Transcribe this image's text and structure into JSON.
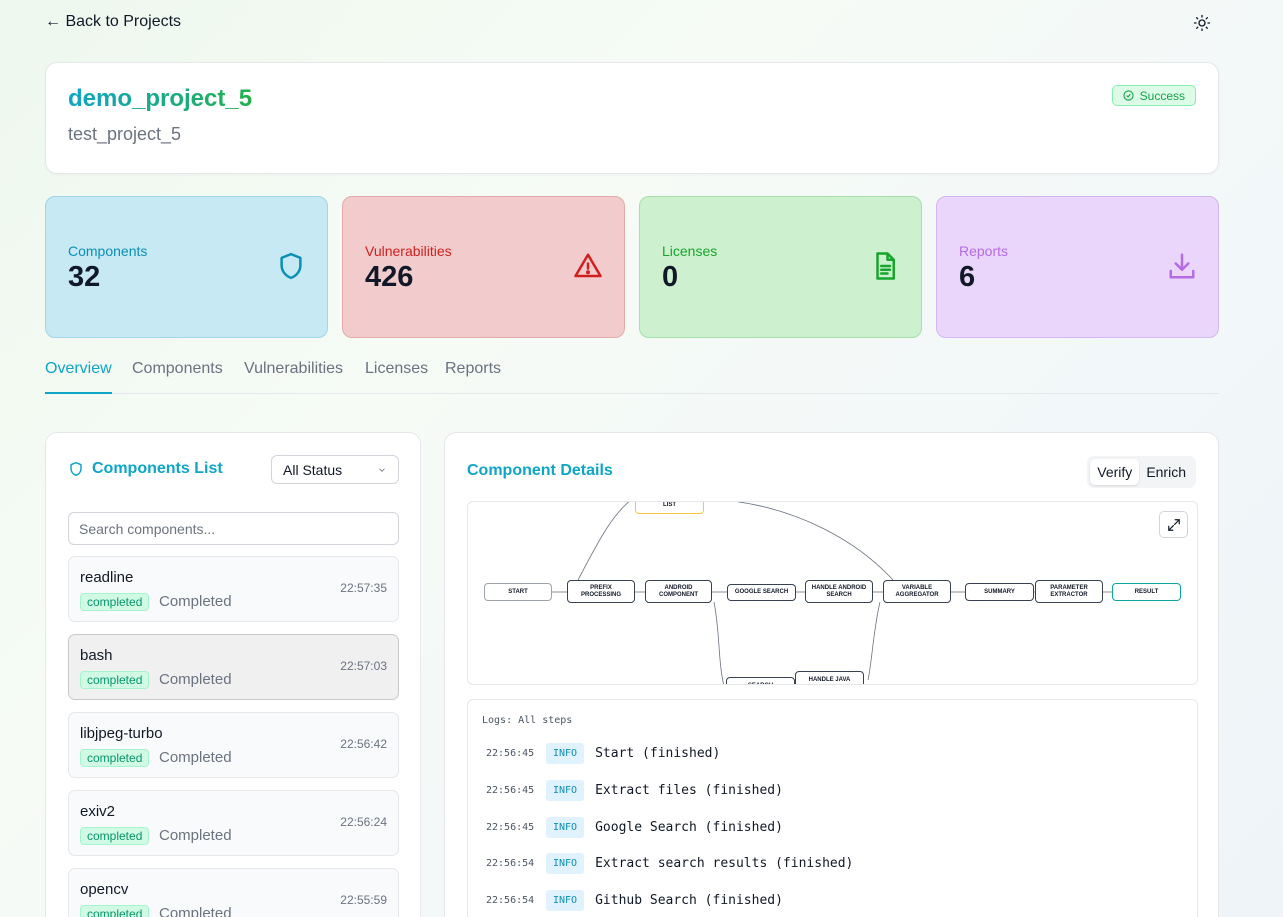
{
  "nav": {
    "back_label": "← Back to Projects",
    "theme_icon": "sun-icon"
  },
  "project": {
    "title": "demo_project_5",
    "subtitle": "test_project_5",
    "status": "Success"
  },
  "stats": [
    {
      "label": "Components",
      "value": "32",
      "icon": "shield-icon"
    },
    {
      "label": "Vulnerabilities",
      "value": "426",
      "icon": "warning-triangle-icon"
    },
    {
      "label": "Licenses",
      "value": "0",
      "icon": "document-icon"
    },
    {
      "label": "Reports",
      "value": "6",
      "icon": "download-icon"
    }
  ],
  "tabs": [
    "Overview",
    "Components",
    "Vulnerabilities",
    "Licenses",
    "Reports"
  ],
  "components_list": {
    "title": "Components List",
    "filter_value": "All Status",
    "search_placeholder": "Search components...",
    "items": [
      {
        "name": "readline",
        "badge": "completed",
        "state": "Completed",
        "time": "22:57:35"
      },
      {
        "name": "bash",
        "badge": "completed",
        "state": "Completed",
        "time": "22:57:03"
      },
      {
        "name": "libjpeg-turbo",
        "badge": "completed",
        "state": "Completed",
        "time": "22:56:42"
      },
      {
        "name": "exiv2",
        "badge": "completed",
        "state": "Completed",
        "time": "22:56:24"
      },
      {
        "name": "opencv",
        "badge": "completed",
        "state": "Completed",
        "time": "22:55:59"
      }
    ]
  },
  "details": {
    "title": "Component Details",
    "modes": [
      "Verify",
      "Enrich"
    ],
    "nodes": {
      "list": "LIST",
      "start": "START",
      "prefix": "PREFIX PROCESSING",
      "android": "ANDROID COMPONENT",
      "google": "GOOGLE SEARCH",
      "handle_android": "HANDLE ANDROID SEARCH",
      "aggregator": "VARIABLE AGGREGATOR",
      "summary": "SUMMARY",
      "extractor": "PARAMETER EXTRACTOR",
      "result": "RESULT",
      "search": "SEARCH",
      "handle_java": "HANDLE JAVA"
    },
    "logs_title": "Logs: All steps",
    "logs": [
      {
        "time": "22:56:45",
        "level": "INFO",
        "message": "Start (finished)"
      },
      {
        "time": "22:56:45",
        "level": "INFO",
        "message": "Extract files (finished)"
      },
      {
        "time": "22:56:45",
        "level": "INFO",
        "message": "Google Search (finished)"
      },
      {
        "time": "22:56:54",
        "level": "INFO",
        "message": "Extract search results (finished)"
      },
      {
        "time": "22:56:54",
        "level": "INFO",
        "message": "Github Search (finished)"
      }
    ]
  }
}
